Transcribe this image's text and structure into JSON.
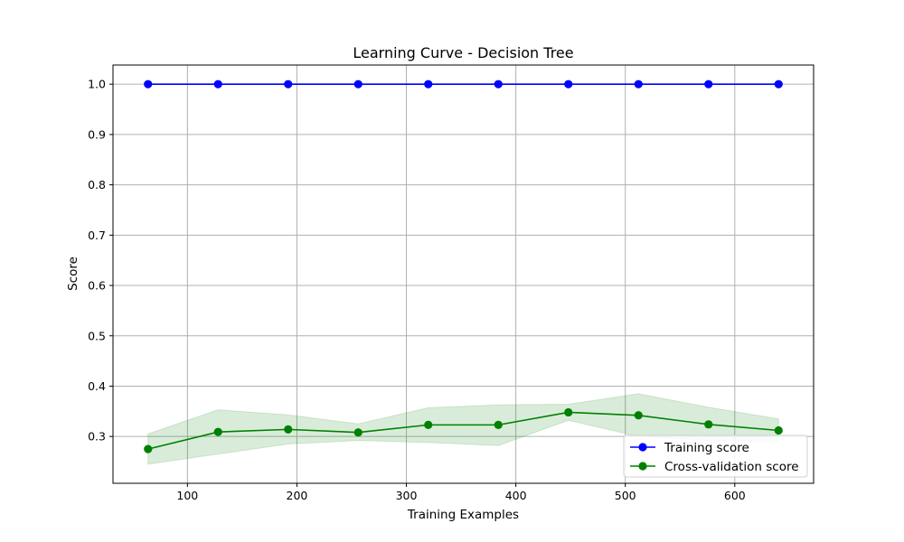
{
  "chart_data": {
    "type": "line",
    "title": "Learning Curve - Decision Tree",
    "xlabel": "Training Examples",
    "ylabel": "Score",
    "xlim": [
      32,
      672
    ],
    "ylim": [
      0.207,
      1.038
    ],
    "xticks": [
      100,
      200,
      300,
      400,
      500,
      600
    ],
    "yticks": [
      0.3,
      0.4,
      0.5,
      0.6,
      0.7,
      0.8,
      0.9,
      1.0
    ],
    "xtick_labels": [
      "100",
      "200",
      "300",
      "400",
      "500",
      "600"
    ],
    "ytick_labels": [
      "0.3",
      "0.4",
      "0.5",
      "0.6",
      "0.7",
      "0.8",
      "0.9",
      "1.0"
    ],
    "grid": true,
    "legend_position": "lower-right",
    "x": [
      64,
      128,
      192,
      256,
      320,
      384,
      448,
      512,
      576,
      640
    ],
    "series": [
      {
        "name": "Training score",
        "color": "#0000ff",
        "marker": "circle",
        "values": [
          1.0,
          1.0,
          1.0,
          1.0,
          1.0,
          1.0,
          1.0,
          1.0,
          1.0,
          1.0
        ],
        "band_lower": [
          1.0,
          1.0,
          1.0,
          1.0,
          1.0,
          1.0,
          1.0,
          1.0,
          1.0,
          1.0
        ],
        "band_upper": [
          1.0,
          1.0,
          1.0,
          1.0,
          1.0,
          1.0,
          1.0,
          1.0,
          1.0,
          1.0
        ],
        "band_color": "#0000ff"
      },
      {
        "name": "Cross-validation score",
        "color": "#008000",
        "marker": "circle",
        "values": [
          0.275,
          0.309,
          0.314,
          0.308,
          0.323,
          0.323,
          0.348,
          0.342,
          0.324,
          0.312
        ],
        "band_lower": [
          0.245,
          0.265,
          0.285,
          0.292,
          0.288,
          0.282,
          0.332,
          0.3,
          0.292,
          0.29
        ],
        "band_upper": [
          0.305,
          0.353,
          0.343,
          0.325,
          0.357,
          0.363,
          0.364,
          0.385,
          0.358,
          0.335
        ],
        "band_color": "#008000"
      }
    ]
  }
}
